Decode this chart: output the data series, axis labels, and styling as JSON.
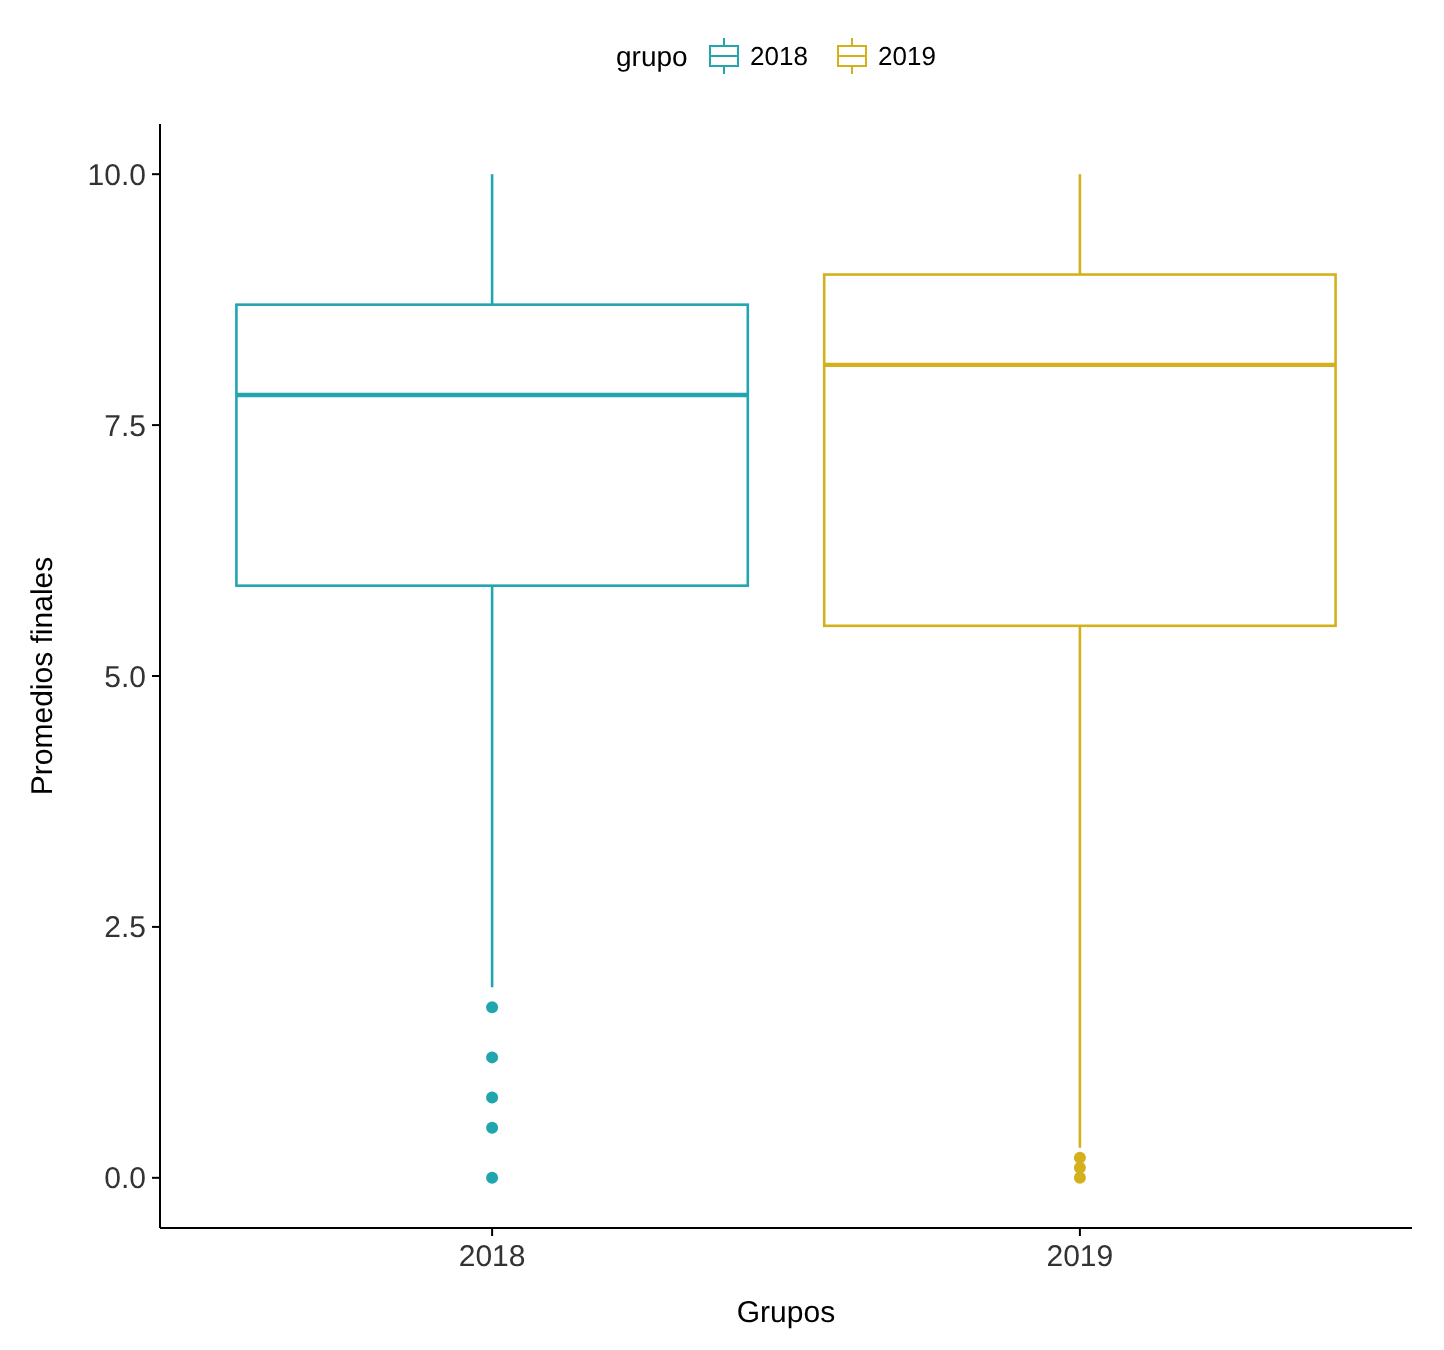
{
  "chart_data": {
    "type": "box",
    "xlabel": "Grupos",
    "ylabel": "Promedios finales",
    "legend_title": "grupo",
    "legend": "top",
    "grid": false,
    "categories": [
      "2018",
      "2019"
    ],
    "ylim": [
      -0.5,
      10.5
    ],
    "yticks": [
      {
        "value": 0,
        "label": "0.0"
      },
      {
        "value": 2.5,
        "label": "2.5"
      },
      {
        "value": 5,
        "label": "5.0"
      },
      {
        "value": 7.5,
        "label": "7.5"
      },
      {
        "value": 10,
        "label": "10.0"
      }
    ],
    "series": [
      {
        "name": "2018",
        "color": "#21a6b0",
        "boxes": [
          {
            "low": 1.9,
            "q1": 5.9,
            "median": 7.8,
            "q3": 8.7,
            "high": 10,
            "outliers": [
              1.7,
              1.2,
              0.8,
              0.5,
              0
            ]
          },
          null
        ]
      },
      {
        "name": "2019",
        "color": "#d4b01c",
        "boxes": [
          null,
          {
            "low": 0.3,
            "q1": 5.5,
            "median": 8.1,
            "q3": 9.0,
            "high": 10,
            "outliers": [
              0.2,
              0.1,
              0
            ]
          }
        ]
      }
    ]
  }
}
